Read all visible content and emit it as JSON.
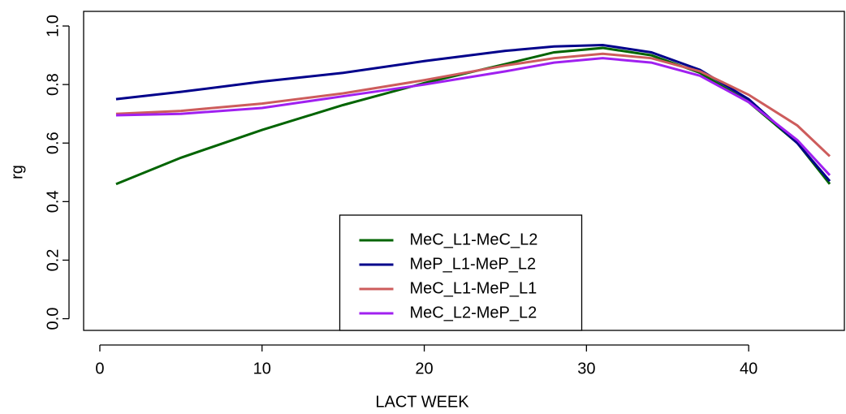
{
  "chart_data": {
    "type": "line",
    "x_label": "LACT WEEK",
    "y_label": "rg",
    "x": [
      1,
      5,
      10,
      15,
      20,
      25,
      28,
      31,
      34,
      37,
      40,
      43,
      45
    ],
    "series": [
      {
        "name": "MeC_L1-MeC_L2",
        "color": "#006400",
        "values": [
          0.46,
          0.55,
          0.645,
          0.73,
          0.805,
          0.87,
          0.91,
          0.925,
          0.9,
          0.84,
          0.74,
          0.6,
          0.46
        ]
      },
      {
        "name": "MeP_L1-MeP_L2",
        "color": "#00008b",
        "values": [
          0.75,
          0.775,
          0.81,
          0.84,
          0.88,
          0.915,
          0.93,
          0.935,
          0.91,
          0.85,
          0.75,
          0.6,
          0.47
        ]
      },
      {
        "name": "MeC_L1-MeP_L1",
        "color": "#cd5c5c",
        "values": [
          0.7,
          0.71,
          0.735,
          0.77,
          0.815,
          0.865,
          0.89,
          0.905,
          0.89,
          0.845,
          0.765,
          0.66,
          0.555
        ]
      },
      {
        "name": "MeC_L2-MeP_L2",
        "color": "#a020f0",
        "values": [
          0.695,
          0.7,
          0.72,
          0.76,
          0.8,
          0.845,
          0.875,
          0.89,
          0.875,
          0.83,
          0.74,
          0.61,
          0.49
        ]
      }
    ],
    "xlim": [
      -1,
      45.9
    ],
    "ylim": [
      -0.04,
      1.05
    ],
    "xticks": [
      0,
      10,
      20,
      30,
      40
    ],
    "yticks": [
      {
        "value": 0,
        "label": "0.0"
      },
      {
        "value": 0.2,
        "label": "0.2"
      },
      {
        "value": 0.4,
        "label": "0.4"
      },
      {
        "value": 0.6,
        "label": "0.6"
      },
      {
        "value": 0.8,
        "label": "0.8"
      },
      {
        "value": 1,
        "label": "1.0"
      }
    ],
    "legend": "bottom"
  }
}
